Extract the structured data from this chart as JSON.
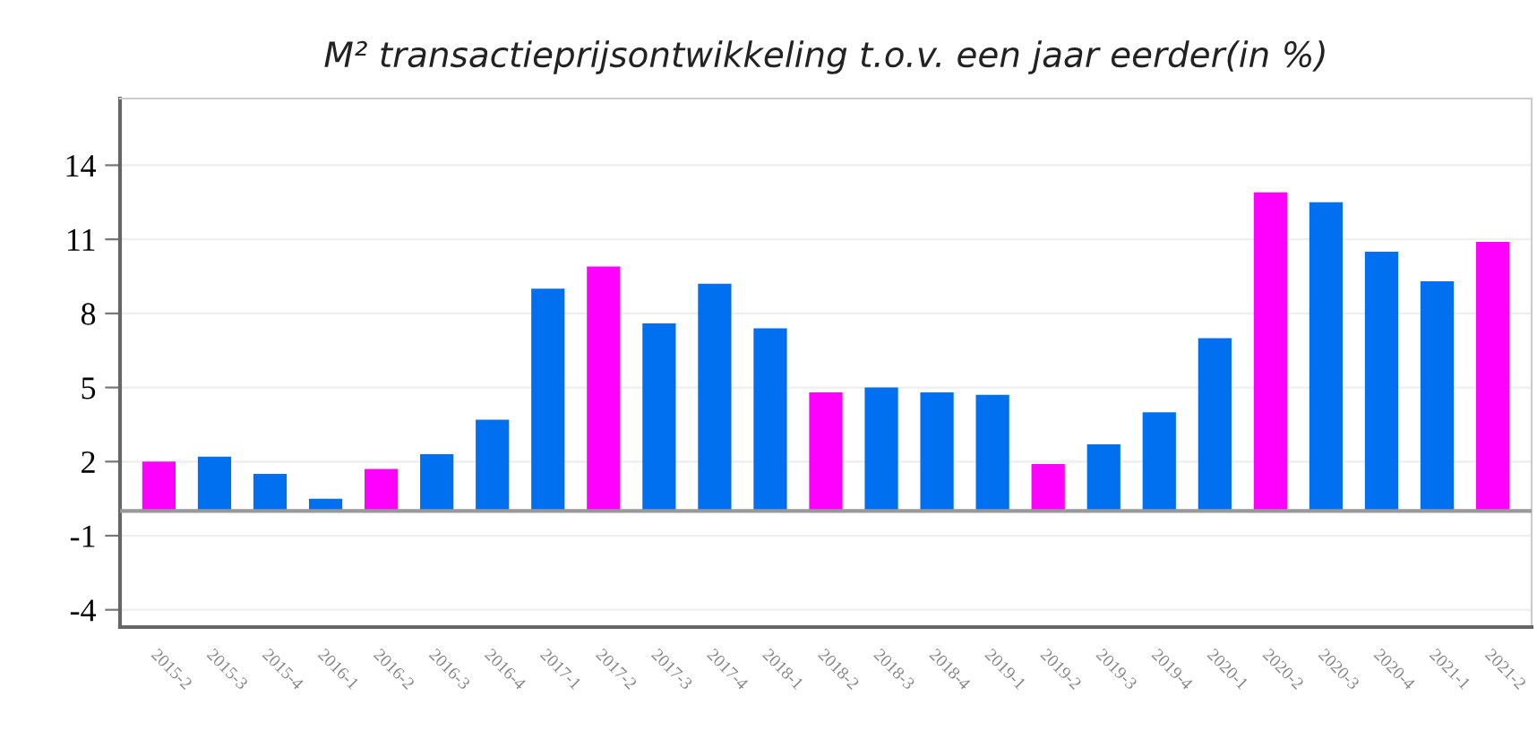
{
  "chart_data": {
    "type": "bar",
    "title": "M² transactieprijsontwikkeling t.o.v. een jaar eerder(in %)",
    "categories": [
      "2015-2",
      "2015-3",
      "2015-4",
      "2016-1",
      "2016-2",
      "2016-3",
      "2016-4",
      "2017-1",
      "2017-2",
      "2017-3",
      "2017-4",
      "2018-1",
      "2018-2",
      "2018-3",
      "2018-4",
      "2019-1",
      "2019-2",
      "2019-3",
      "2019-4",
      "2020-1",
      "2020-2",
      "2020-3",
      "2020-4",
      "2021-1",
      "2021-2"
    ],
    "values": [
      2.0,
      2.2,
      1.5,
      0.5,
      1.7,
      2.3,
      3.7,
      9.0,
      9.9,
      7.6,
      9.2,
      7.4,
      4.8,
      5.0,
      4.8,
      4.7,
      1.9,
      2.7,
      4.0,
      7.0,
      12.9,
      12.5,
      10.5,
      9.3,
      10.9
    ],
    "colors": [
      "#ff00ff",
      "#0070f0",
      "#0070f0",
      "#0070f0",
      "#ff00ff",
      "#0070f0",
      "#0070f0",
      "#0070f0",
      "#ff00ff",
      "#0070f0",
      "#0070f0",
      "#0070f0",
      "#ff00ff",
      "#0070f0",
      "#0070f0",
      "#0070f0",
      "#ff00ff",
      "#0070f0",
      "#0070f0",
      "#0070f0",
      "#ff00ff",
      "#0070f0",
      "#0070f0",
      "#0070f0",
      "#ff00ff"
    ],
    "ylim": [
      -4.7,
      16.7
    ],
    "yticks": [
      -4,
      -1,
      2,
      5,
      8,
      11,
      14
    ],
    "grid": "y",
    "ref_lines": [
      {
        "axis": "y",
        "value": 0,
        "color": "#999999"
      }
    ]
  }
}
